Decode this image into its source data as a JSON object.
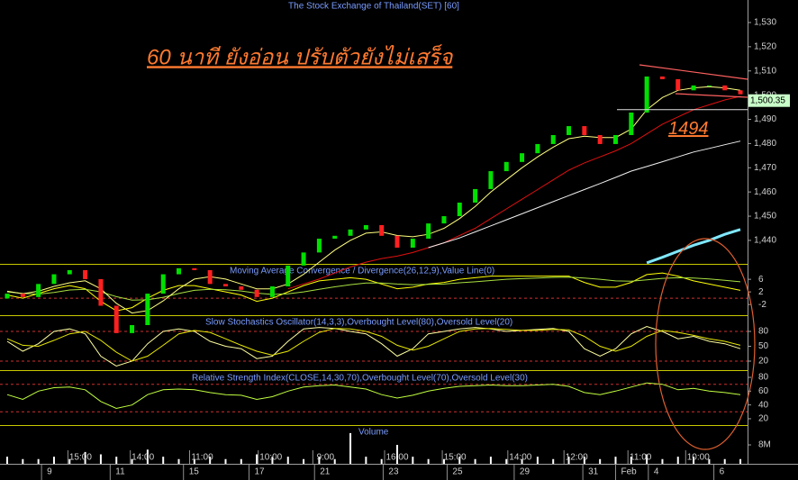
{
  "chart_data": [
    {
      "type": "candlestick",
      "title": "The Stock Exchange of Thailand(SET) [60]",
      "annotation": "60 นาที ยังอ่อน ปรับตัวยังไม่เสร็จ",
      "support": 1494,
      "last_price": {
        "value": 1500.35,
        "label": "1,500.35"
      },
      "ylim": [
        1430.3,
        1539.3
      ],
      "yticks": [
        {
          "value": 1530,
          "label": "1,530"
        },
        {
          "value": 1520,
          "label": "1,520"
        },
        {
          "value": 1510,
          "label": "1,510"
        },
        {
          "value": 1500,
          "label": "1,500"
        },
        {
          "value": 1490,
          "label": "1,490"
        },
        {
          "value": 1480,
          "label": "1,480"
        },
        {
          "value": 1470,
          "label": "1,470"
        },
        {
          "value": 1460,
          "label": "1,460"
        },
        {
          "value": 1450,
          "label": "1,450"
        },
        {
          "value": 1440,
          "label": "1,440"
        }
      ],
      "up_color": "#00e000",
      "down_color": "#ff2020",
      "open": [
        1416,
        1418,
        1416.6,
        1422,
        1426,
        1427.7,
        1424,
        1413,
        1401.7,
        1405,
        1418,
        1426,
        1428.5,
        1427.7,
        1422,
        1421,
        1419.6,
        1416.6,
        1421,
        1429.6,
        1435,
        1440.7,
        1441.9,
        1444.5,
        1446.3,
        1441.9,
        1437,
        1440.7,
        1447,
        1450,
        1455.6,
        1461.2,
        1468.6,
        1472.4,
        1476,
        1479.8,
        1483.5,
        1487.2,
        1483.5,
        1479.8,
        1483.5,
        1492.8,
        1507.7,
        1506.6,
        1502,
        1504,
        1504,
        1502
      ],
      "close": [
        1418,
        1416.6,
        1422,
        1426,
        1427.7,
        1424,
        1413,
        1401.7,
        1405,
        1418,
        1426,
        1428.5,
        1427.7,
        1422,
        1421,
        1419.6,
        1416.6,
        1421,
        1429.6,
        1435,
        1440.7,
        1441.9,
        1444.5,
        1446.3,
        1441.9,
        1437,
        1440.7,
        1447,
        1450,
        1455.6,
        1461.2,
        1468.6,
        1472.4,
        1476,
        1479.8,
        1483.5,
        1487.2,
        1483.5,
        1479.8,
        1483.5,
        1492.8,
        1507.7,
        1506.6,
        1502,
        1504,
        1504,
        1502,
        1500.35
      ],
      "overlays": [
        {
          "color": "#ffff80",
          "values": [
            1419,
            1418,
            1419,
            1421,
            1422.5,
            1423.3,
            1420,
            1414,
            1410,
            1411,
            1415,
            1420,
            1424,
            1425,
            1424,
            1422,
            1420,
            1420,
            1422,
            1426,
            1431,
            1436,
            1440,
            1443,
            1443.5,
            1442,
            1441.5,
            1442.5,
            1445,
            1449,
            1454,
            1460,
            1465,
            1470,
            1474.5,
            1478.5,
            1482,
            1483,
            1482.5,
            1482.5,
            1486,
            1494,
            1499,
            1502,
            1503,
            1503.5,
            1503,
            1502
          ]
        },
        {
          "color": "#e01010",
          "values": [
            null,
            null,
            null,
            null,
            null,
            null,
            null,
            null,
            null,
            null,
            null,
            null,
            null,
            null,
            null,
            null,
            null,
            null,
            1420,
            1422,
            1424,
            1426.5,
            1429,
            1431,
            1432.5,
            1433.5,
            1435,
            1437,
            1439,
            1442,
            1445,
            1449,
            1453,
            1457,
            1461,
            1465,
            1469,
            1472,
            1474.5,
            1477,
            1480,
            1484,
            1488,
            1491,
            1494,
            1496,
            1498,
            1499.5
          ]
        },
        {
          "color": "#f0f0f0",
          "values": [
            null,
            null,
            null,
            null,
            null,
            null,
            null,
            null,
            null,
            null,
            null,
            null,
            null,
            null,
            null,
            null,
            null,
            null,
            null,
            null,
            null,
            null,
            null,
            null,
            null,
            null,
            null,
            1437,
            1439,
            1441,
            1443.5,
            1446,
            1448.5,
            1451,
            1453.5,
            1456,
            1458.5,
            1461,
            1463.5,
            1466,
            1468.6,
            1470.5,
            1472.5,
            1474.5,
            1476.5,
            1478,
            1479.5,
            1481
          ]
        },
        {
          "color": "#80e8ff",
          "values": [
            null,
            null,
            null,
            null,
            null,
            null,
            null,
            null,
            null,
            null,
            null,
            null,
            null,
            null,
            null,
            null,
            null,
            null,
            null,
            null,
            null,
            null,
            null,
            null,
            null,
            null,
            null,
            null,
            null,
            null,
            null,
            null,
            null,
            null,
            null,
            null,
            null,
            null,
            null,
            null,
            null,
            1430.7,
            1433,
            1435.5,
            1438,
            1440,
            1442.5,
            1444.5
          ]
        }
      ]
    },
    {
      "type": "line",
      "title": "Moving Average Convergence / Divergence(26,12,9),Value Line(0)",
      "ylim": [
        -5.4,
        10.9
      ],
      "yticks": [
        6,
        2,
        -2
      ],
      "levels": [
        0
      ],
      "series": [
        {
          "color": "#ffff00",
          "values": [
            1,
            0,
            1.5,
            3,
            4,
            3,
            -1,
            -4,
            -3,
            0,
            2.5,
            4,
            4,
            3,
            2,
            1,
            -1,
            0,
            2,
            4,
            5.5,
            6,
            6.5,
            6,
            4.5,
            3,
            3.5,
            4.5,
            5,
            6,
            6.5,
            7,
            7,
            7,
            7,
            7,
            7,
            5,
            3.5,
            3.5,
            5,
            7.5,
            8,
            7,
            5.5,
            4.5,
            3.5,
            2.5
          ]
        },
        {
          "color": "#a8e040",
          "values": [
            2,
            1.5,
            1.3,
            1.8,
            2.6,
            2.8,
            2,
            0.5,
            -0.6,
            -0.5,
            0.3,
            1.5,
            2.5,
            2.8,
            2.7,
            2.3,
            1.6,
            1.2,
            1.4,
            2,
            2.8,
            3.6,
            4.3,
            4.8,
            4.8,
            4.5,
            4.3,
            4.4,
            4.5,
            4.9,
            5.2,
            5.6,
            6,
            6.2,
            6.4,
            6.6,
            6.7,
            6.4,
            6,
            5.5,
            5.4,
            5.8,
            6.3,
            6.5,
            6.4,
            6.1,
            5.7,
            5.2
          ]
        }
      ]
    },
    {
      "type": "line",
      "title": "Slow Stochastics Oscillator(14,3,3),Overbought Level(80),Oversold Level(20)",
      "ylim": [
        1.8,
        112.7
      ],
      "yticks": [
        80,
        50,
        20
      ],
      "levels": [
        80,
        20
      ],
      "series": [
        {
          "color": "#ffffa0",
          "values": [
            60,
            40,
            55,
            80,
            85,
            75,
            30,
            10,
            20,
            55,
            80,
            85,
            80,
            60,
            50,
            45,
            25,
            30,
            60,
            85,
            88,
            86,
            80,
            75,
            55,
            30,
            45,
            75,
            80,
            85,
            88,
            85,
            80,
            82,
            84,
            86,
            80,
            45,
            30,
            45,
            75,
            90,
            80,
            65,
            70,
            60,
            55,
            45
          ]
        },
        {
          "color": "#e8e800",
          "values": [
            65,
            52,
            50,
            62,
            75,
            80,
            62,
            38,
            20,
            30,
            52,
            75,
            82,
            78,
            65,
            52,
            40,
            32,
            40,
            60,
            78,
            86,
            85,
            80,
            70,
            52,
            42,
            50,
            65,
            80,
            85,
            86,
            84,
            82,
            82,
            84,
            83,
            70,
            50,
            40,
            50,
            70,
            82,
            78,
            72,
            65,
            60,
            52
          ]
        }
      ]
    },
    {
      "type": "line",
      "title": "Relative Strength Index(CLOSE,14,30,70),Overbought Level(70),Oversold Level(30)",
      "ylim": [
        10.8,
        90.5
      ],
      "yticks": [
        80,
        60,
        40,
        20
      ],
      "levels": [
        70,
        30
      ],
      "series": [
        {
          "color": "#c0ff40",
          "values": [
            55,
            48,
            60,
            65,
            66,
            62,
            45,
            35,
            40,
            55,
            62,
            63,
            62,
            58,
            55,
            54,
            48,
            52,
            60,
            66,
            68,
            69,
            66,
            63,
            55,
            50,
            54,
            60,
            64,
            67,
            68,
            69,
            68,
            68,
            69,
            70,
            67,
            58,
            55,
            60,
            66,
            72,
            70,
            62,
            64,
            60,
            58,
            55
          ]
        }
      ]
    },
    {
      "type": "bar",
      "title": "Volume",
      "color": "#ffffff",
      "ylim": [
        0,
        16.4
      ],
      "yticks": [
        {
          "value": 8,
          "label": "8M"
        }
      ],
      "values": [
        3,
        2,
        2,
        3,
        2,
        5,
        4,
        3,
        2,
        6,
        3,
        2,
        2,
        3,
        2,
        2,
        4,
        3,
        3,
        2,
        3,
        2,
        13,
        3,
        2,
        8,
        3,
        2,
        2,
        3,
        2,
        3,
        2,
        2,
        3,
        2,
        3,
        3,
        2,
        3,
        3,
        4,
        2,
        3,
        3,
        2,
        2,
        2
      ],
      "xticks": [
        {
          "value": 4.7,
          "label": "15:00"
        },
        {
          "value": 8.7,
          "label": "14:00"
        },
        {
          "value": 12.5,
          "label": "11:00"
        },
        {
          "value": 16.9,
          "label": "10:00"
        },
        {
          "value": 20.4,
          "label": "9:00"
        },
        {
          "value": 25,
          "label": "16:00"
        },
        {
          "value": 28.7,
          "label": "15:00"
        },
        {
          "value": 32.9,
          "label": "14:00"
        },
        {
          "value": 36.5,
          "label": "12:00"
        },
        {
          "value": 40.6,
          "label": "11:00"
        },
        {
          "value": 44.3,
          "label": "10:00"
        }
      ],
      "xticks_day": [
        {
          "value": 2.2,
          "label": "9"
        },
        {
          "value": 6.6,
          "label": "11"
        },
        {
          "value": 11.3,
          "label": "15"
        },
        {
          "value": 15.5,
          "label": "17"
        },
        {
          "value": 19.7,
          "label": "21"
        },
        {
          "value": 24.1,
          "label": "23"
        },
        {
          "value": 28.2,
          "label": "25"
        },
        {
          "value": 32.5,
          "label": "29"
        },
        {
          "value": 36.9,
          "label": "31"
        },
        {
          "value": 39,
          "label": "Feb"
        },
        {
          "value": 41.1,
          "label": "4"
        },
        {
          "value": 45.3,
          "label": "6"
        }
      ]
    }
  ]
}
